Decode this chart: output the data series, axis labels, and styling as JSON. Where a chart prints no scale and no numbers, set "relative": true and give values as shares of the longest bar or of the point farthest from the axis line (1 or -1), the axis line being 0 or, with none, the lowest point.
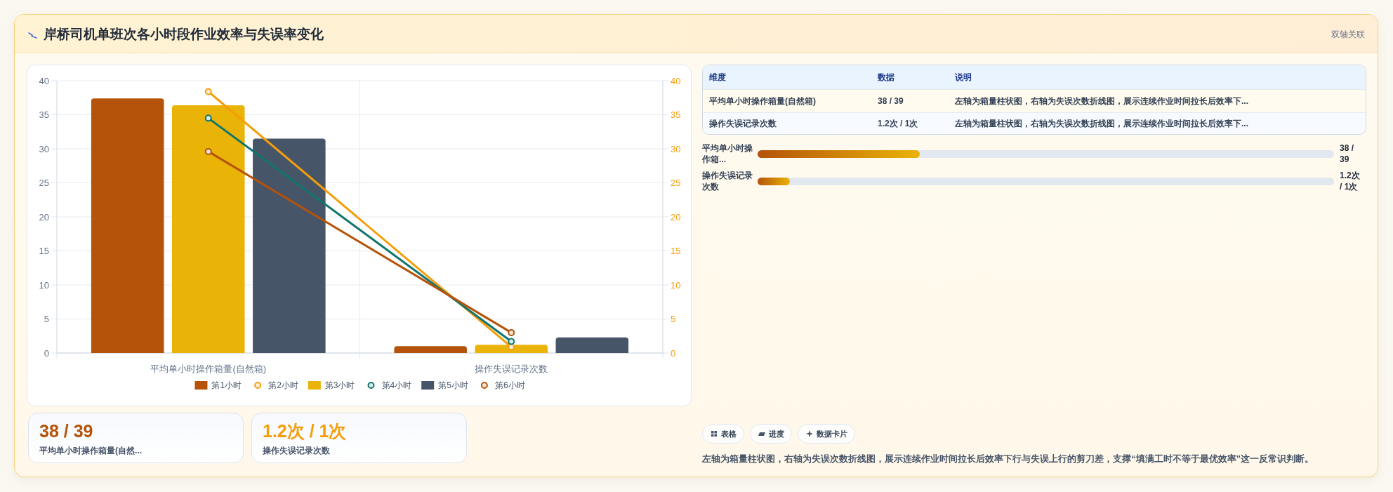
{
  "chart_data": [
    {
      "type": "bar",
      "title": "岸桥司机单班次各小时段作业效率与失误率变化",
      "annotations": [
        "双轴关联"
      ],
      "categories": [
        "平均单小时操作箱量(自然箱)",
        "操作失误记录次数"
      ],
      "series": [
        {
          "name": "第1小时",
          "type": "bar",
          "color": "#b45309",
          "values": [
            37.4,
            1.0
          ]
        },
        {
          "name": "第2小时",
          "type": "line",
          "axis": "y2",
          "color": "#f59e0b",
          "values": [
            38.4,
            0.9
          ]
        },
        {
          "name": "第3小时",
          "type": "bar",
          "color": "#eab308",
          "values": [
            36.4,
            1.2
          ]
        },
        {
          "name": "第4小时",
          "type": "line",
          "axis": "y2",
          "color": "#0f766e",
          "values": [
            34.5,
            1.7
          ]
        },
        {
          "name": "第5小时",
          "type": "bar",
          "color": "#475569",
          "values": [
            31.5,
            2.3
          ]
        },
        {
          "name": "第6小时",
          "type": "line",
          "axis": "y2",
          "color": "#b45309",
          "values": [
            29.6,
            3.0
          ]
        }
      ],
      "ylim": [
        0,
        40
      ],
      "yticks": [
        0,
        5,
        10,
        15,
        20,
        25,
        30,
        35,
        40
      ],
      "y2lim": [
        0,
        40
      ],
      "y2ticks": [
        0,
        5,
        10,
        15,
        20,
        25,
        30,
        35,
        40
      ],
      "grid": true,
      "legend": "bottom",
      "marker": "circle",
      "line_style": "solid"
    },
    {
      "type": "other",
      "annotations": [
        "维度",
        "数据",
        "说明",
        "平均单小时操作箱量(自然箱)",
        "38 / 39",
        "左轴为箱量柱状图，右轴为失误次数折线图，展示连续作业时间拉长后效率下...",
        "操作失误记录次数",
        "1.2次 / 1次",
        "左轴为箱量柱状图，右轴为失误次数折线图，展示连续作业时间拉长后效率下..."
      ]
    },
    {
      "type": "bar",
      "orientation": "horizontal",
      "relative": true,
      "categories": [
        "平均单小时操作箱...",
        "操作失误记录次数"
      ],
      "values": [
        1,
        0.2
      ],
      "color": "#b45309",
      "annotations": [
        "38 / 39",
        "1.2次 / 1次"
      ]
    },
    {
      "type": "other",
      "annotations": [
        "38 / 39",
        "平均单小时操作箱量(自然...",
        "1.2次 / 1次",
        "操作失误记录次数"
      ]
    },
    {
      "type": "other",
      "annotations": [
        "表格",
        "进度",
        "数据卡片",
        "左轴为箱量柱状图，右轴为失误次数折线图，展示连续作业时间拉长后效率下行与失误上行的剪刀差，支撑“填满工时不等于最优效率”这一反常识判断。"
      ]
    }
  ]
}
